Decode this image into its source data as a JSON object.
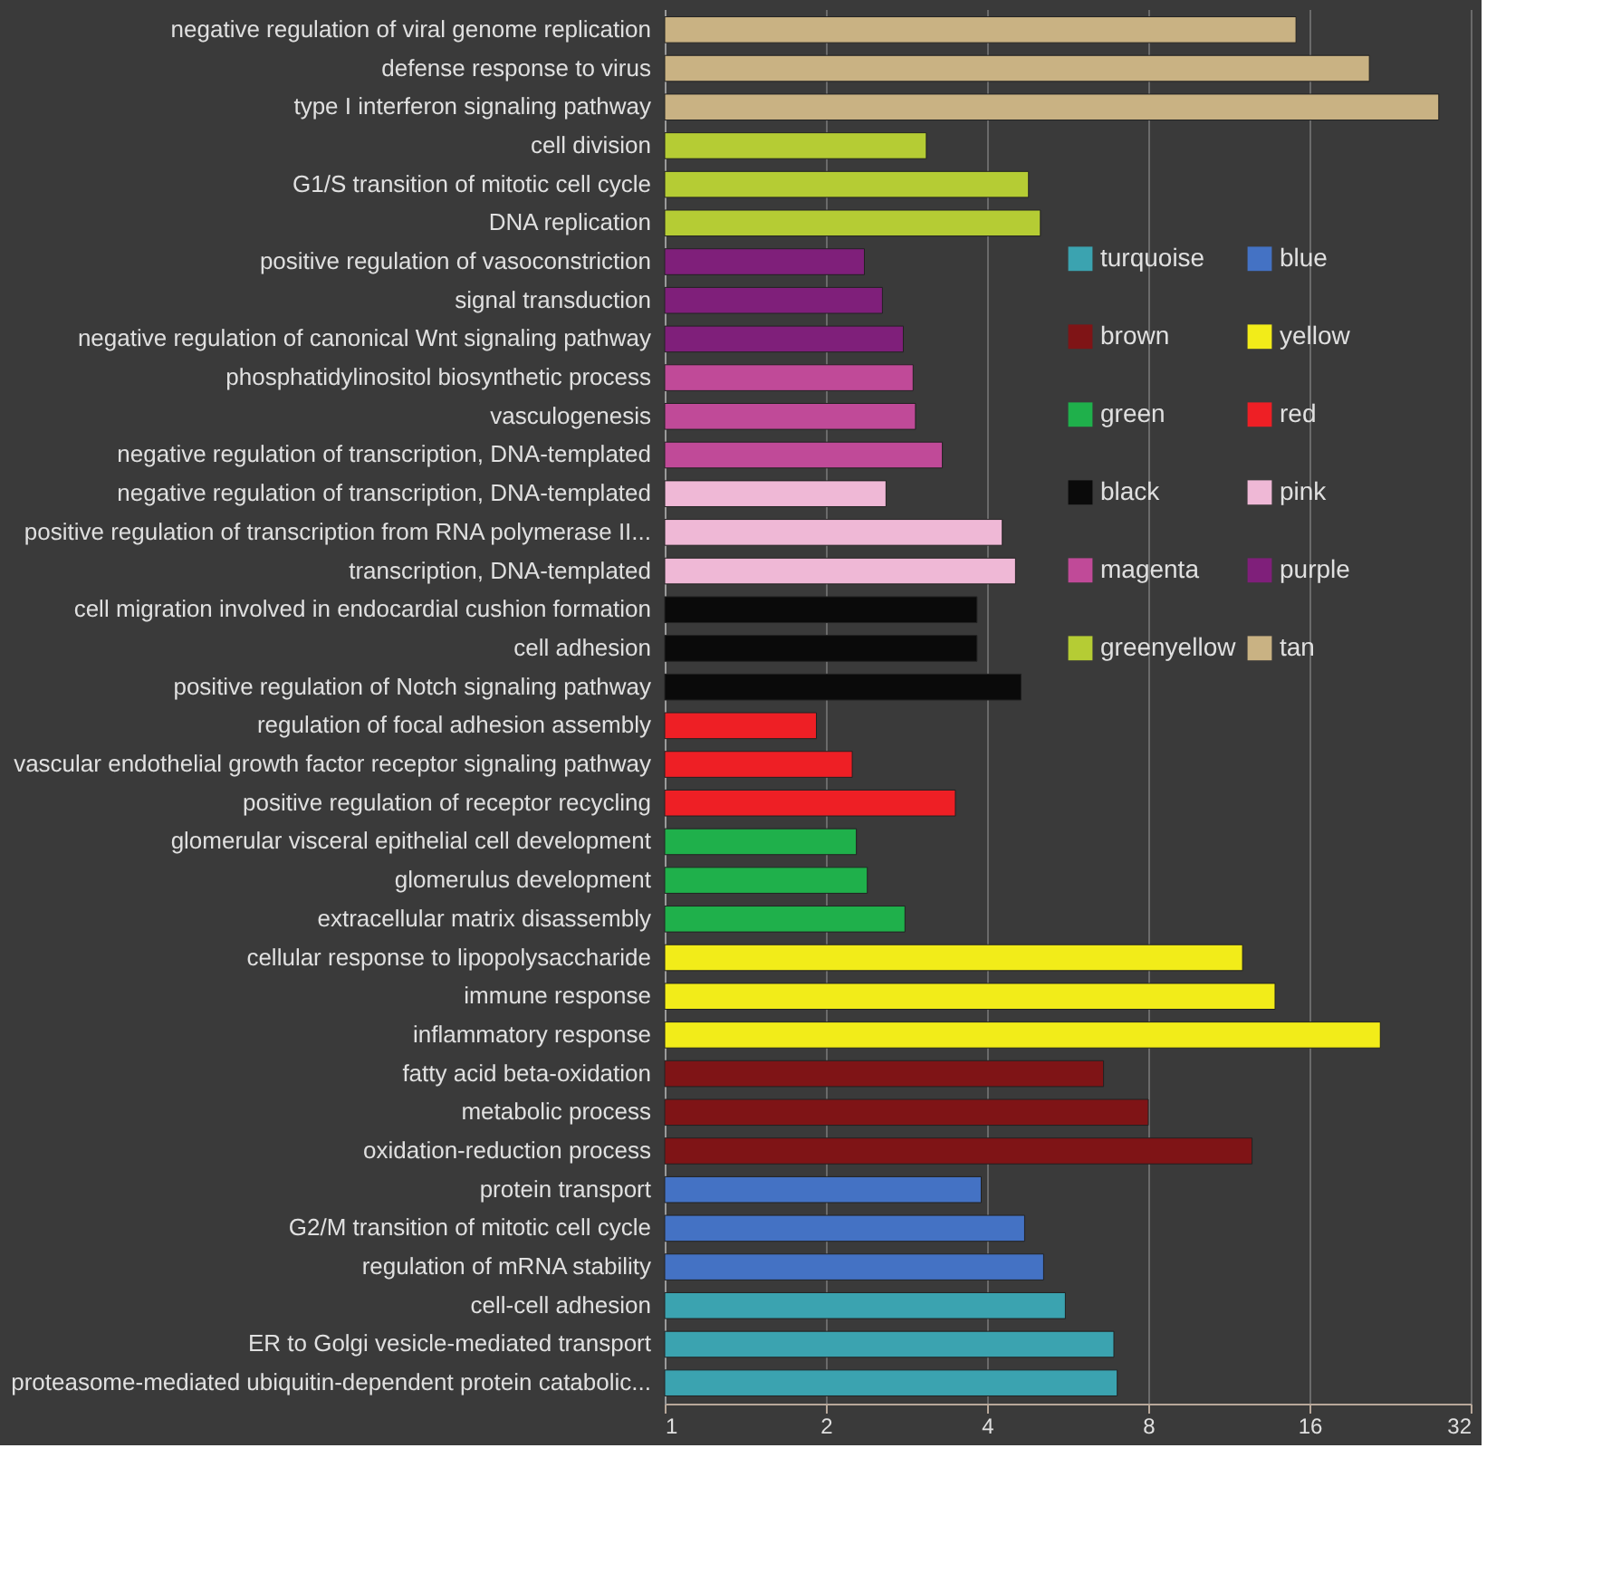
{
  "chart_data": {
    "type": "bar",
    "orientation": "horizontal",
    "log": "x",
    "grid": "x",
    "legend": "right",
    "categories": [
      "negative regulation of viral genome replication",
      "defense response to virus",
      "type I interferon signaling pathway",
      "cell division",
      "G1/S transition of mitotic cell cycle",
      "DNA replication",
      "positive regulation of vasoconstriction",
      "signal transduction",
      "negative regulation of canonical Wnt signaling pathway",
      "phosphatidylinositol biosynthetic process",
      "vasculogenesis",
      "negative regulation of transcription, DNA-templated",
      "negative regulation of transcription, DNA-templated",
      "positive regulation of transcription from RNA polymerase II...",
      "transcription, DNA-templated",
      "cell migration involved in endocardial cushion formation",
      "cell adhesion",
      "positive regulation of Notch signaling pathway",
      "regulation of focal adhesion assembly",
      "vascular endothelial growth factor receptor signaling pathway",
      "positive regulation of receptor recycling",
      "glomerular visceral epithelial cell development",
      "glomerulus development",
      "extracellular matrix disassembly",
      "cellular response to lipopolysaccharide",
      "immune response",
      "inflammatory response",
      "fatty acid beta-oxidation",
      "metabolic process",
      "oxidation-reduction process",
      "protein transport",
      "G2/M transition of mitotic cell cycle",
      "regulation of mRNA stability",
      "cell-cell adhesion",
      "ER to Golgi vesicle-mediated transport",
      "proteasome-mediated ubiquitin-dependent protein catabolic..."
    ],
    "xlim": [
      1,
      32
    ],
    "xticks": [
      1,
      2,
      4,
      8,
      16,
      32
    ],
    "series": [
      {
        "name": "turquoise",
        "color": "#3ba3b0",
        "values": [
          null,
          null,
          null,
          null,
          null,
          null,
          null,
          null,
          null,
          null,
          null,
          null,
          null,
          null,
          null,
          null,
          null,
          null,
          null,
          null,
          null,
          null,
          null,
          null,
          null,
          null,
          null,
          null,
          null,
          null,
          null,
          null,
          null,
          5.6,
          6.9,
          7.0
        ]
      },
      {
        "name": "blue",
        "color": "#4472c4",
        "values": [
          null,
          null,
          null,
          null,
          null,
          null,
          null,
          null,
          null,
          null,
          null,
          null,
          null,
          null,
          null,
          null,
          null,
          null,
          null,
          null,
          null,
          null,
          null,
          null,
          null,
          null,
          null,
          null,
          null,
          null,
          3.9,
          4.7,
          5.1,
          null,
          null,
          null
        ]
      },
      {
        "name": "brown",
        "color": "#7f1416",
        "values": [
          null,
          null,
          null,
          null,
          null,
          null,
          null,
          null,
          null,
          null,
          null,
          null,
          null,
          null,
          null,
          null,
          null,
          null,
          null,
          null,
          null,
          null,
          null,
          null,
          null,
          null,
          null,
          6.6,
          8.0,
          12.5,
          null,
          null,
          null,
          null,
          null,
          null
        ]
      },
      {
        "name": "yellow",
        "color": "#f2ec19",
        "values": [
          null,
          null,
          null,
          null,
          null,
          null,
          null,
          null,
          null,
          null,
          null,
          null,
          null,
          null,
          null,
          null,
          null,
          null,
          null,
          null,
          null,
          null,
          null,
          null,
          12.0,
          13.8,
          21.7,
          null,
          null,
          null,
          null,
          null,
          null,
          null,
          null,
          null
        ]
      },
      {
        "name": "green",
        "color": "#1fb04b",
        "values": [
          null,
          null,
          null,
          null,
          null,
          null,
          null,
          null,
          null,
          null,
          null,
          null,
          null,
          null,
          null,
          null,
          null,
          null,
          null,
          null,
          null,
          2.28,
          2.39,
          2.81,
          null,
          null,
          null,
          null,
          null,
          null,
          null,
          null,
          null,
          null,
          null,
          null
        ]
      },
      {
        "name": "red",
        "color": "#ee1f25",
        "values": [
          null,
          null,
          null,
          null,
          null,
          null,
          null,
          null,
          null,
          null,
          null,
          null,
          null,
          null,
          null,
          null,
          null,
          null,
          1.92,
          2.24,
          3.49,
          null,
          null,
          null,
          null,
          null,
          null,
          null,
          null,
          null,
          null,
          null,
          null,
          null,
          null,
          null
        ]
      },
      {
        "name": "black",
        "color": "#0a0a0a",
        "values": [
          null,
          null,
          null,
          null,
          null,
          null,
          null,
          null,
          null,
          null,
          null,
          null,
          null,
          null,
          null,
          3.83,
          3.83,
          4.63,
          null,
          null,
          null,
          null,
          null,
          null,
          null,
          null,
          null,
          null,
          null,
          null,
          null,
          null,
          null,
          null,
          null,
          null
        ]
      },
      {
        "name": "pink",
        "color": "#efb8d6",
        "values": [
          null,
          null,
          null,
          null,
          null,
          null,
          null,
          null,
          null,
          null,
          null,
          null,
          2.59,
          4.27,
          4.52,
          null,
          null,
          null,
          null,
          null,
          null,
          null,
          null,
          null,
          null,
          null,
          null,
          null,
          null,
          null,
          null,
          null,
          null,
          null,
          null,
          null
        ]
      },
      {
        "name": "magenta",
        "color": "#c04a98",
        "values": [
          null,
          null,
          null,
          null,
          null,
          null,
          null,
          null,
          null,
          2.91,
          2.94,
          3.3,
          null,
          null,
          null,
          null,
          null,
          null,
          null,
          null,
          null,
          null,
          null,
          null,
          null,
          null,
          null,
          null,
          null,
          null,
          null,
          null,
          null,
          null,
          null,
          null
        ]
      },
      {
        "name": "purple",
        "color": "#7f1f7a",
        "values": [
          null,
          null,
          null,
          null,
          null,
          null,
          2.36,
          2.55,
          2.79,
          null,
          null,
          null,
          null,
          null,
          null,
          null,
          null,
          null,
          null,
          null,
          null,
          null,
          null,
          null,
          null,
          null,
          null,
          null,
          null,
          null,
          null,
          null,
          null,
          null,
          null,
          null
        ]
      },
      {
        "name": "greenyellow",
        "color": "#b5cc34",
        "values": [
          null,
          null,
          null,
          3.08,
          4.78,
          5.03,
          null,
          null,
          null,
          null,
          null,
          null,
          null,
          null,
          null,
          null,
          null,
          null,
          null,
          null,
          null,
          null,
          null,
          null,
          null,
          null,
          null,
          null,
          null,
          null,
          null,
          null,
          null,
          null,
          null,
          null
        ]
      },
      {
        "name": "tan",
        "color": "#c9b283",
        "values": [
          15.1,
          20.7,
          27.9,
          null,
          null,
          null,
          null,
          null,
          null,
          null,
          null,
          null,
          null,
          null,
          null,
          null,
          null,
          null,
          null,
          null,
          null,
          null,
          null,
          null,
          null,
          null,
          null,
          null,
          null,
          null,
          null,
          null,
          null,
          null,
          null,
          null
        ]
      }
    ]
  }
}
